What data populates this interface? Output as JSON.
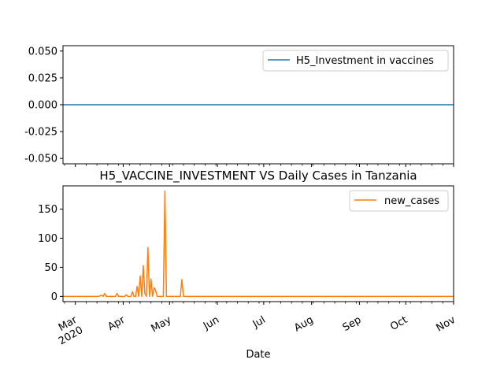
{
  "chart_data": [
    {
      "type": "line",
      "title": "",
      "xlabel": "",
      "ylabel": "",
      "ylim": [
        -0.055,
        0.055
      ],
      "yticks": [
        "0.050",
        "0.025",
        "0.000",
        "-0.025",
        "-0.050"
      ],
      "ytick_values": [
        0.05,
        0.025,
        0.0,
        -0.025,
        -0.05
      ],
      "legend_position": "top-right",
      "grid": false,
      "series": [
        {
          "name": "H5_Investment in vaccines",
          "color": "#1f77b4",
          "x": [
            "2020-02-22",
            "2020-11-01"
          ],
          "y": [
            0,
            0
          ]
        }
      ]
    },
    {
      "type": "line",
      "title": "H5_VACCINE_INVESTMENT VS Daily Cases in Tanzania",
      "xlabel": "Date",
      "ylabel": "",
      "xlim": [
        "2020-02-22",
        "2020-11-01"
      ],
      "ylim": [
        -9,
        190
      ],
      "yticks": [
        "150",
        "100",
        "50",
        "0"
      ],
      "ytick_values": [
        150,
        100,
        50,
        0
      ],
      "xticks": [
        {
          "date": "2020-03-01",
          "label": "Mar",
          "sublabel": "2020"
        },
        {
          "date": "2020-04-01",
          "label": "Apr",
          "sublabel": ""
        },
        {
          "date": "2020-05-01",
          "label": "May",
          "sublabel": ""
        },
        {
          "date": "2020-06-01",
          "label": "Jun",
          "sublabel": ""
        },
        {
          "date": "2020-07-01",
          "label": "Jul",
          "sublabel": ""
        },
        {
          "date": "2020-08-01",
          "label": "Aug",
          "sublabel": ""
        },
        {
          "date": "2020-09-01",
          "label": "Sep",
          "sublabel": ""
        },
        {
          "date": "2020-10-01",
          "label": "Oct",
          "sublabel": ""
        },
        {
          "date": "2020-11-01",
          "label": "Nov",
          "sublabel": ""
        }
      ],
      "legend_position": "top-right",
      "grid": false,
      "series": [
        {
          "name": "new_cases",
          "color": "#ff7f0e",
          "x": [
            "2020-02-22",
            "2020-03-16",
            "2020-03-18",
            "2020-03-19",
            "2020-03-20",
            "2020-03-21",
            "2020-03-22",
            "2020-03-23",
            "2020-03-27",
            "2020-03-28",
            "2020-03-29",
            "2020-04-02",
            "2020-04-03",
            "2020-04-04",
            "2020-04-06",
            "2020-04-07",
            "2020-04-08",
            "2020-04-09",
            "2020-04-10",
            "2020-04-11",
            "2020-04-12",
            "2020-04-13",
            "2020-04-14",
            "2020-04-15",
            "2020-04-16",
            "2020-04-17",
            "2020-04-18",
            "2020-04-19",
            "2020-04-20",
            "2020-04-21",
            "2020-04-22",
            "2020-04-23",
            "2020-04-24",
            "2020-04-25",
            "2020-04-26",
            "2020-04-27",
            "2020-04-28",
            "2020-04-29",
            "2020-04-30",
            "2020-05-08",
            "2020-05-09",
            "2020-05-10",
            "2020-11-01"
          ],
          "y": [
            0,
            0,
            2,
            0,
            5,
            0,
            0,
            0,
            0,
            5,
            0,
            0,
            3,
            0,
            0,
            8,
            0,
            0,
            17,
            0,
            35,
            0,
            53,
            5,
            0,
            84,
            0,
            30,
            0,
            15,
            10,
            0,
            0,
            0,
            0,
            0,
            181,
            0,
            0,
            0,
            29,
            0,
            0
          ]
        }
      ]
    }
  ]
}
